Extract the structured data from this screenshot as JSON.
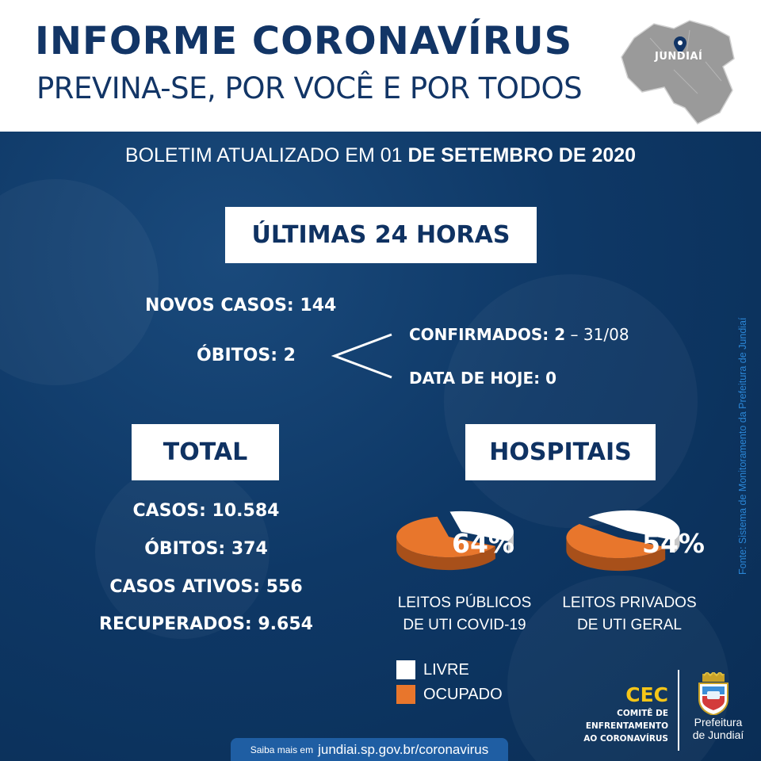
{
  "header": {
    "title": "INFORME CORONAVÍRUS",
    "subtitle": "PREVINA-SE, POR VOCÊ E POR TODOS",
    "map_label": "JUNDIAÍ"
  },
  "boletim": {
    "prefix": "BOLETIM  ATUALIZADO EM 01 ",
    "date_bold": "DE SETEMBRO DE 2020"
  },
  "ultimas": {
    "heading": "ÚLTIMAS 24 HORAS",
    "novos_casos": "NOVOS CASOS: 144",
    "obitos": "ÓBITOS:  2",
    "confirmados": "CONFIRMADOS: 2",
    "confirmados_date": " – 31/08",
    "data_hoje": "DATA DE HOJE: 0"
  },
  "total": {
    "heading": "TOTAL",
    "casos": "CASOS: 10.584",
    "obitos": "ÓBITOS: 374",
    "ativos": "CASOS ATIVOS: 556",
    "recuperados": "RECUPERADOS: 9.654"
  },
  "hospitais": {
    "heading": "HOSPITAIS",
    "publicos": {
      "percent_label": "64%",
      "occupied_fraction": 0.64,
      "line1": "LEITOS PÚBLICOS",
      "line2": "DE UTI COVID-19"
    },
    "privados": {
      "percent_label": "54%",
      "occupied_fraction": 0.54,
      "line1": "LEITOS PRIVADOS",
      "line2": "DE UTI GERAL"
    },
    "legend": {
      "livre": "LIVRE",
      "ocupado": "OCUPADO"
    }
  },
  "colors": {
    "background": "#0d3563",
    "title_blue": "#123566",
    "occupied": "#e8762c",
    "free": "#ffffff",
    "cec_yellow": "#f5c518",
    "fonte_blue": "#2b86d6"
  },
  "fonte": "Fonte: Sistema de Monitoramento da Prefeitura de Jundiaí",
  "footer": {
    "cec": "CEC",
    "comite": "COMITÊ DE\nENFRENTAMENTO\nAO CORONAVÍRUS",
    "prefeitura": "Prefeitura\nde Jundiaí",
    "saiba_prefix": "Saiba mais em",
    "saiba_url": "jundiai.sp.gov.br/coronavirus"
  },
  "icons": {
    "map_pin": "map-pin-icon",
    "brasao": "coat-of-arms-icon"
  }
}
